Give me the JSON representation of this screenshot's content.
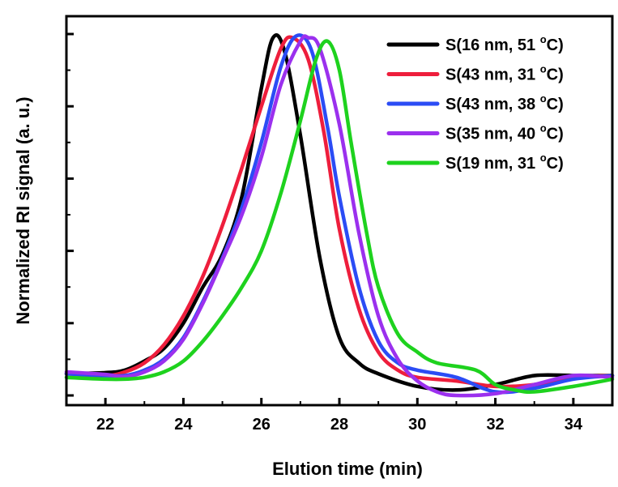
{
  "chart_data": {
    "type": "line",
    "title": "",
    "xlabel": "Elution time (min)",
    "ylabel": "Normalized RI signal (a. u.)",
    "xlim": [
      21,
      35
    ],
    "ylim": [
      0,
      1
    ],
    "xticks": [
      22,
      24,
      26,
      28,
      30,
      32,
      34
    ],
    "yticks": [
      0.0,
      0.2,
      0.4,
      0.6,
      0.8,
      1.0
    ],
    "show_y_tick_labels": false,
    "grid": false,
    "legend_position": "top-right",
    "series": [
      {
        "name": "S(16 nm, 51 °C)",
        "label_prefix": "S(16 nm, 51 ",
        "label_unit": "C)",
        "color": "#000000",
        "points": [
          [
            21,
            0.06
          ],
          [
            22,
            0.063
          ],
          [
            22.5,
            0.07
          ],
          [
            23,
            0.095
          ],
          [
            23.5,
            0.13
          ],
          [
            24,
            0.2
          ],
          [
            24.5,
            0.3
          ],
          [
            25,
            0.39
          ],
          [
            25.5,
            0.55
          ],
          [
            26,
            0.85
          ],
          [
            26.3,
            0.99
          ],
          [
            26.6,
            0.95
          ],
          [
            27,
            0.72
          ],
          [
            27.5,
            0.38
          ],
          [
            28,
            0.16
          ],
          [
            28.5,
            0.09
          ],
          [
            29,
            0.06
          ],
          [
            30,
            0.025
          ],
          [
            31,
            0.015
          ],
          [
            32,
            0.03
          ],
          [
            33,
            0.055
          ],
          [
            34,
            0.055
          ],
          [
            35,
            0.055
          ]
        ]
      },
      {
        "name": "S(43 nm, 31 °C)",
        "label_prefix": "S(43 nm, 31 ",
        "label_unit": "C)",
        "color": "#ee1e3c",
        "points": [
          [
            21,
            0.06
          ],
          [
            22,
            0.055
          ],
          [
            22.5,
            0.065
          ],
          [
            23,
            0.09
          ],
          [
            23.5,
            0.14
          ],
          [
            24,
            0.22
          ],
          [
            24.5,
            0.33
          ],
          [
            25,
            0.47
          ],
          [
            25.5,
            0.63
          ],
          [
            26,
            0.8
          ],
          [
            26.5,
            0.96
          ],
          [
            26.8,
            0.99
          ],
          [
            27.2,
            0.93
          ],
          [
            27.6,
            0.73
          ],
          [
            28,
            0.46
          ],
          [
            28.5,
            0.24
          ],
          [
            29,
            0.12
          ],
          [
            29.5,
            0.07
          ],
          [
            30,
            0.05
          ],
          [
            31,
            0.04
          ],
          [
            32,
            0.025
          ],
          [
            33,
            0.03
          ],
          [
            34,
            0.05
          ],
          [
            35,
            0.055
          ]
        ]
      },
      {
        "name": "S(43 nm, 38 °C)",
        "label_prefix": "S(43 nm, 38 ",
        "label_unit": "C)",
        "color": "#2b4cf5",
        "points": [
          [
            21,
            0.06
          ],
          [
            22,
            0.055
          ],
          [
            22.5,
            0.055
          ],
          [
            23,
            0.07
          ],
          [
            23.5,
            0.1
          ],
          [
            24,
            0.16
          ],
          [
            24.5,
            0.26
          ],
          [
            25,
            0.38
          ],
          [
            25.5,
            0.52
          ],
          [
            26,
            0.7
          ],
          [
            26.5,
            0.91
          ],
          [
            26.9,
            0.995
          ],
          [
            27.3,
            0.95
          ],
          [
            27.7,
            0.74
          ],
          [
            28,
            0.55
          ],
          [
            28.5,
            0.3
          ],
          [
            29,
            0.15
          ],
          [
            29.5,
            0.09
          ],
          [
            30,
            0.07
          ],
          [
            31,
            0.05
          ],
          [
            32,
            0.01
          ],
          [
            33,
            0.02
          ],
          [
            34,
            0.045
          ],
          [
            35,
            0.055
          ]
        ]
      },
      {
        "name": "S(35 nm, 40 °C)",
        "label_prefix": "S(35 nm, 40 ",
        "label_unit": "C)",
        "color": "#9b30ee",
        "points": [
          [
            21,
            0.065
          ],
          [
            22,
            0.058
          ],
          [
            22.5,
            0.052
          ],
          [
            23,
            0.065
          ],
          [
            23.5,
            0.095
          ],
          [
            24,
            0.155
          ],
          [
            24.5,
            0.255
          ],
          [
            25,
            0.375
          ],
          [
            25.5,
            0.5
          ],
          [
            26,
            0.66
          ],
          [
            26.5,
            0.86
          ],
          [
            27,
            0.98
          ],
          [
            27.2,
            0.99
          ],
          [
            27.5,
            0.96
          ],
          [
            28,
            0.75
          ],
          [
            28.5,
            0.45
          ],
          [
            29,
            0.22
          ],
          [
            29.5,
            0.1
          ],
          [
            30,
            0.04
          ],
          [
            30.5,
            0.01
          ],
          [
            31,
            0.0
          ],
          [
            32,
            0.005
          ],
          [
            33,
            0.03
          ],
          [
            34,
            0.055
          ],
          [
            35,
            0.05
          ]
        ]
      },
      {
        "name": "S(19 nm, 31 °C)",
        "label_prefix": "S(19 nm, 31 ",
        "label_unit": "C)",
        "color": "#1ed21e",
        "points": [
          [
            21,
            0.05
          ],
          [
            22,
            0.045
          ],
          [
            22.5,
            0.045
          ],
          [
            23,
            0.05
          ],
          [
            23.5,
            0.065
          ],
          [
            24,
            0.095
          ],
          [
            24.5,
            0.15
          ],
          [
            25,
            0.22
          ],
          [
            25.5,
            0.3
          ],
          [
            26,
            0.4
          ],
          [
            26.5,
            0.56
          ],
          [
            27,
            0.76
          ],
          [
            27.4,
            0.93
          ],
          [
            27.7,
            0.98
          ],
          [
            28,
            0.9
          ],
          [
            28.3,
            0.7
          ],
          [
            28.7,
            0.45
          ],
          [
            29,
            0.3
          ],
          [
            29.5,
            0.17
          ],
          [
            30,
            0.12
          ],
          [
            30.5,
            0.09
          ],
          [
            31.5,
            0.07
          ],
          [
            32,
            0.03
          ],
          [
            32.5,
            0.015
          ],
          [
            33,
            0.01
          ],
          [
            34,
            0.025
          ],
          [
            35,
            0.045
          ]
        ]
      }
    ]
  }
}
